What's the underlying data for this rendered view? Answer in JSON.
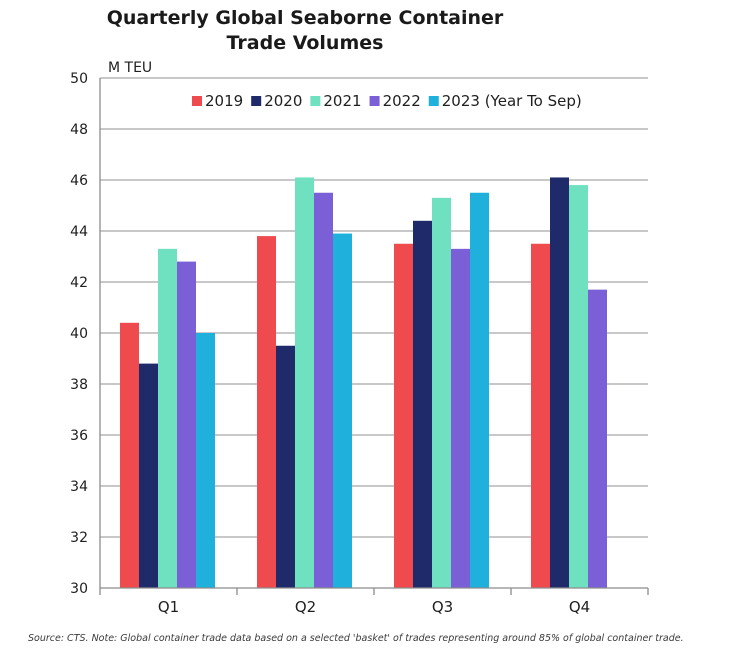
{
  "chart_data": {
    "type": "bar",
    "title": "Quarterly Global Seaborne Container Trade Volumes",
    "ylabel": "M TEU",
    "xlabel": "",
    "categories": [
      "Q1",
      "Q2",
      "Q3",
      "Q4"
    ],
    "ylim": [
      30,
      50
    ],
    "yticks": [
      30,
      32,
      34,
      36,
      38,
      40,
      42,
      44,
      46,
      48,
      50
    ],
    "grid": true,
    "legend_position": "top-right",
    "series": [
      {
        "name": "2019",
        "color": "#ef4a4e",
        "values": [
          40.4,
          43.8,
          43.5,
          43.5
        ]
      },
      {
        "name": "2020",
        "color": "#1f2a6b",
        "values": [
          38.8,
          39.5,
          44.4,
          46.1
        ]
      },
      {
        "name": "2021",
        "color": "#6fe0c0",
        "values": [
          43.3,
          46.1,
          45.3,
          45.8
        ]
      },
      {
        "name": "2022",
        "color": "#7a5fd6",
        "values": [
          42.8,
          45.5,
          43.3,
          41.7
        ]
      },
      {
        "name": "2023 (Year To Sep)",
        "color": "#1fb1dc",
        "values": [
          40.0,
          43.9,
          45.5,
          null
        ]
      }
    ],
    "source": "Source: CTS. Note: Global container trade data based on a selected 'basket' of trades representing around 85% of global container trade."
  }
}
